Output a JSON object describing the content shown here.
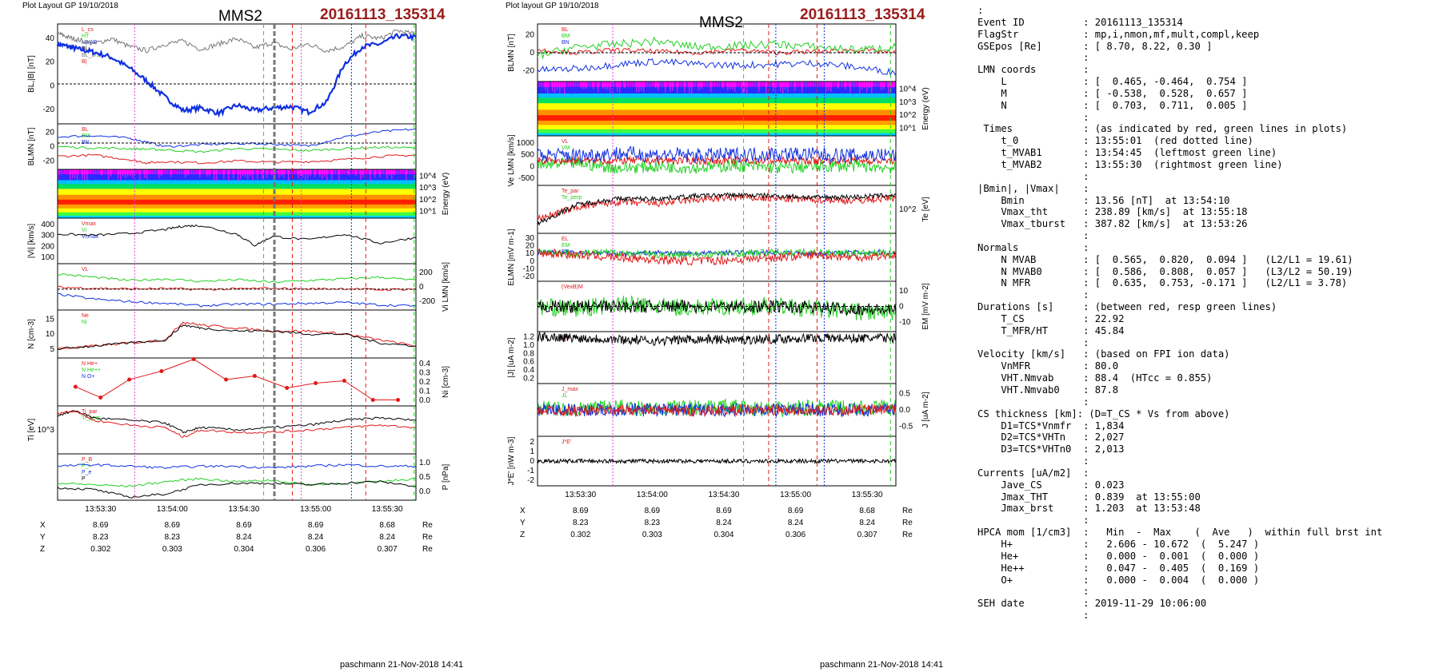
{
  "left_header": {
    "layout_label": "Plot Layout GP 19/10/2018",
    "spacecraft": "MMS2",
    "event": "20161113_135314"
  },
  "middle_header": {
    "layout_label": "Plot layout GP 19/10/2018",
    "spacecraft": "MMS2",
    "event": "20161113_135314"
  },
  "footer_left": "paschmann 21-Nov-2018 14:41",
  "footer_middle": "paschmann 21-Nov-2018 14:41",
  "colors": {
    "event_title": "#9b1b1b",
    "blue": "#1030e0",
    "red": "#e01a1a",
    "green": "#22d022",
    "gray": "#777777",
    "magenta": "#e040e0",
    "black": "#000000"
  },
  "chart_data": [
    {
      "type": "line",
      "panel": "left",
      "x_tick_labels": [
        "13:53:30",
        "13:54:00",
        "13:54:30",
        "13:55:00",
        "13:55:30"
      ],
      "position_table": {
        "rows": [
          {
            "label": "X",
            "values": [
              "8.69",
              "8.69",
              "8.69",
              "8.69",
              "8.68"
            ],
            "unit": "Re"
          },
          {
            "label": "Y",
            "values": [
              "8.23",
              "8.23",
              "8.24",
              "8.24",
              "8.24"
            ],
            "unit": "Re"
          },
          {
            "label": "Z",
            "values": [
              "0.302",
              "0.303",
              "0.304",
              "0.306",
              "0.307"
            ],
            "unit": "Re"
          }
        ]
      },
      "panels": [
        {
          "id": "bl",
          "ylabel": "BL,|B| [nT]",
          "ylim": [
            -30,
            45
          ],
          "ticks": [
            "40",
            "20",
            "0",
            "-20"
          ],
          "legend": [
            "L_cs",
            "HT",
            "MVAB",
            "BL",
            "BL_brst",
            "B|"
          ],
          "x": [
            0,
            0.03,
            0.06,
            0.1,
            0.15,
            0.2,
            0.25,
            0.3,
            0.35,
            0.4,
            0.45,
            0.5,
            0.55,
            0.6,
            0.65,
            0.7,
            0.75,
            0.8,
            0.85,
            0.9,
            0.95,
            1.0
          ],
          "series": [
            {
              "values": [
                30,
                28,
                26,
                24,
                20,
                12,
                2,
                -10,
                -20,
                -18,
                -22,
                -16,
                -20,
                -18,
                -17,
                -21,
                -14,
                15,
                28,
                30,
                36,
                35
              ]
            },
            {
              "values": [
                38,
                35,
                33,
                30,
                34,
                28,
                25,
                30,
                32,
                26,
                30,
                34,
                27,
                31,
                26,
                30,
                25,
                28,
                36,
                34,
                40,
                37
              ]
            }
          ]
        },
        {
          "id": "blmn",
          "ylabel": "BLMN [nT]",
          "ylim": [
            -30,
            40
          ],
          "ticks": [
            "20",
            "0",
            "-20"
          ],
          "legend": [
            "BL",
            "BM",
            "BN"
          ],
          "x": [
            0,
            0.1,
            0.2,
            0.25,
            0.3,
            0.4,
            0.5,
            0.6,
            0.7,
            0.8,
            0.9,
            1.0
          ],
          "series": [
            {
              "values": [
                20,
                22,
                18,
                12,
                5,
                8,
                10,
                9,
                6,
                20,
                28,
                32
              ]
            },
            {
              "values": [
                -10,
                -8,
                -15,
                -20,
                -18,
                -20,
                -17,
                -19,
                -18,
                -15,
                -10,
                -8
              ]
            },
            {
              "values": [
                5,
                3,
                2,
                1,
                0,
                -3,
                2,
                1,
                -1,
                2,
                4,
                3
              ]
            }
          ]
        },
        {
          "id": "espec",
          "ylabel": "Energy (eV)",
          "ticks": [
            "10^4",
            "10^3",
            "10^2",
            "10^1"
          ]
        },
        {
          "id": "vi",
          "ylabel": "|Vi| [km/s]",
          "ylim": [
            0,
            400
          ],
          "ticks": [
            "400",
            "300",
            "200",
            "100"
          ],
          "legend": [
            "Vmax",
            "Vi",
            "Vi,max"
          ],
          "x": [
            0,
            0.1,
            0.2,
            0.3,
            0.35,
            0.4,
            0.5,
            0.55,
            0.6,
            0.7,
            0.8,
            0.9,
            1.0
          ],
          "series": [
            {
              "values": [
                260,
                250,
                265,
                300,
                330,
                335,
                260,
                160,
                240,
                210,
                260,
                180,
                230
              ]
            }
          ]
        },
        {
          "id": "vilmn",
          "ylabel": "Vi LMN [km/s]",
          "ylim": [
            -250,
            300
          ],
          "ticks": [
            "200",
            "0",
            "-200"
          ],
          "legend": [
            "VL"
          ],
          "x": [
            0,
            0.1,
            0.2,
            0.3,
            0.4,
            0.5,
            0.6,
            0.7,
            0.8,
            0.9,
            1.0
          ],
          "series": [
            {
              "values": [
                180,
                140,
                100,
                120,
                90,
                110,
                80,
                100,
                120,
                140,
                100
              ]
            },
            {
              "values": [
                -60,
                -120,
                -150,
                -170,
                -200,
                -180,
                -180,
                -170,
                -160,
                -190,
                -200
              ]
            },
            {
              "values": [
                20,
                10,
                0,
                5,
                -5,
                0,
                10,
                0,
                5,
                -10,
                0
              ]
            }
          ]
        },
        {
          "id": "density",
          "ylabel": "N [cm-3]",
          "ylim": [
            0,
            16
          ],
          "ticks": [
            "15",
            "10",
            "5"
          ],
          "legend": [
            "Ne",
            "Ni"
          ],
          "x": [
            0,
            0.1,
            0.2,
            0.3,
            0.35,
            0.4,
            0.5,
            0.6,
            0.7,
            0.8,
            0.9,
            1.0
          ],
          "series": [
            {
              "values": [
                3,
                4,
                5,
                6,
                12,
                11,
                10,
                9,
                9,
                8,
                6,
                4
              ]
            },
            {
              "values": [
                3,
                4,
                5,
                6,
                11,
                10,
                9,
                9,
                8,
                8,
                5,
                4
              ]
            }
          ]
        },
        {
          "id": "hpca",
          "ylabel": "Ni [cm-3]",
          "ylim": [
            0,
            0.4
          ],
          "ticks": [
            "0.4",
            "0.3",
            "0.2",
            "0.1",
            "0.0"
          ],
          "legend": [
            "N He+",
            "N He++",
            "N O+"
          ],
          "x": [
            0.05,
            0.12,
            0.2,
            0.29,
            0.38,
            0.47,
            0.55,
            0.64,
            0.72,
            0.8,
            0.88,
            0.95
          ],
          "series": [
            {
              "values": [
                0.16,
                0.07,
                0.22,
                0.29,
                0.39,
                0.22,
                0.25,
                0.15,
                0.19,
                0.21,
                0.05,
                0.05
              ]
            }
          ]
        },
        {
          "id": "ti",
          "ylabel": "Ti [eV]",
          "ticks": [
            "10^3"
          ],
          "legend": [
            "Ti_par",
            "Ti_perp"
          ],
          "x": [
            0,
            0.05,
            0.1,
            0.2,
            0.3,
            0.35,
            0.4,
            0.5,
            0.6,
            0.7,
            0.8,
            0.9,
            1.0
          ],
          "series": [
            {
              "values": [
                0.8,
                0.9,
                0.75,
                0.7,
                0.65,
                0.45,
                0.55,
                0.5,
                0.55,
                0.6,
                0.7,
                0.75,
                0.7
              ]
            },
            {
              "values": [
                0.85,
                0.9,
                0.7,
                0.6,
                0.55,
                0.35,
                0.5,
                0.45,
                0.45,
                0.5,
                0.55,
                0.6,
                0.55
              ]
            }
          ]
        },
        {
          "id": "pressure",
          "ylabel": "P [nPa]",
          "ylim": [
            0,
            1.5
          ],
          "ticks": [
            "1.0",
            "0.5",
            "0.0"
          ],
          "legend": [
            "P_B",
            "P_i",
            "P_e",
            "P"
          ],
          "x": [
            0,
            0.1,
            0.2,
            0.3,
            0.4,
            0.5,
            0.6,
            0.7,
            0.8,
            0.9,
            1.0
          ],
          "series": [
            {
              "values": [
                1.1,
                1.15,
                1.1,
                1.05,
                1.1,
                1.1,
                1.05,
                1.1,
                1.15,
                1.1,
                1.1
              ]
            },
            {
              "values": [
                0.55,
                0.5,
                0.45,
                0.6,
                0.7,
                0.6,
                0.65,
                0.5,
                0.55,
                0.6,
                0.7
              ]
            },
            {
              "values": [
                0.4,
                0.35,
                0.1,
                0.2,
                0.5,
                0.55,
                0.55,
                0.5,
                0.55,
                0.6,
                0.45
              ]
            }
          ]
        }
      ]
    },
    {
      "type": "line",
      "panel": "middle",
      "x_tick_labels": [
        "13:53:30",
        "13:54:00",
        "13:54:30",
        "13:55:00",
        "13:55:30"
      ],
      "position_table": {
        "rows": [
          {
            "label": "X",
            "values": [
              "8.69",
              "8.69",
              "8.69",
              "8.69",
              "8.68"
            ],
            "unit": "Re"
          },
          {
            "label": "Y",
            "values": [
              "8.23",
              "8.23",
              "8.24",
              "8.24",
              "8.24"
            ],
            "unit": "Re"
          },
          {
            "label": "Z",
            "values": [
              "0.302",
              "0.303",
              "0.304",
              "0.306",
              "0.307"
            ],
            "unit": "Re"
          }
        ]
      },
      "panels": [
        {
          "id": "blmn",
          "ylabel": "BLMN [nT]",
          "ticks": [
            "20",
            "0",
            "-20"
          ],
          "legend": [
            "BL",
            "BM",
            "BN"
          ]
        },
        {
          "id": "espec",
          "ylabel": "Energy (eV)",
          "ticks": [
            "10^4",
            "10^3",
            "10^2",
            "10^1"
          ]
        },
        {
          "id": "ve",
          "ylabel": "Ve LMN [km/s]",
          "ticks": [
            "1000",
            "500",
            "0",
            "-500"
          ],
          "legend": [
            "VL",
            "VM",
            "VN"
          ]
        },
        {
          "id": "te",
          "ylabel": "Te [eV]",
          "ticks": [
            "10^2"
          ],
          "legend": [
            "Te_par",
            "Te_perp"
          ]
        },
        {
          "id": "e",
          "ylabel": "ELMN [mV m-1]",
          "ticks": [
            "30",
            "20",
            "10",
            "0",
            "-10",
            "-20"
          ],
          "legend": [
            "EL",
            "EM",
            "EN"
          ]
        },
        {
          "id": "em",
          "ylabel": "EM [mV m-2]",
          "ticks": [
            "10",
            "0",
            "-10"
          ],
          "legend": [
            "(VexB)M"
          ]
        },
        {
          "id": "j",
          "ylabel": "|J| [uA m-2]",
          "ticks": [
            "1.2",
            "1.0",
            "0.8",
            "0.6",
            "0.4",
            "0.2"
          ],
          "legend": [
            "|J|"
          ]
        },
        {
          "id": "jlmn",
          "ylabel": "J [uA m-2]",
          "ticks": [
            "0.5",
            "0.0",
            "-0.5"
          ],
          "legend": [
            "J_max",
            "JL"
          ]
        },
        {
          "id": "jdote",
          "ylabel": "J*E' [nW m-3]",
          "ticks": [
            "2",
            "1",
            "0",
            "-1",
            "-2"
          ],
          "legend": [
            "J*E'"
          ]
        }
      ]
    }
  ],
  "right_panel": {
    "lines": [
      ":",
      "Event ID          : 20161113_135314",
      "FlagStr           : mp,i,nmon,mf,mult,compl,keep",
      "GSEpos [Re]       : [ 8.70, 8.22, 0.30 ]",
      "                  :",
      "LMN coords        :",
      "    L             : [  0.465, -0.464,  0.754 ]",
      "    M             : [ -0.538,  0.528,  0.657 ]",
      "    N             : [  0.703,  0.711,  0.005 ]",
      "                  :",
      " Times            : (as indicated by red, green lines in plots)",
      "    t_0           : 13:55:01  (red dotted line)",
      "    t_MVAB1       : 13:54:45  (leftmost green line)",
      "    t_MVAB2       : 13:55:30  (rightmost green line)",
      "                  :",
      "|Bmin|, |Vmax|    :",
      "    Bmin          : 13.56 [nT]  at 13:54:10",
      "    Vmax_tht      : 238.89 [km/s]  at 13:55:18",
      "    Vmax_tburst   : 387.82 [km/s]  at 13:53:26",
      "                  :",
      "Normals           :",
      "    N MVAB        : [  0.565,  0.820,  0.094 ]   (L2/L1 = 19.61)",
      "    N MVAB0       : [  0.586,  0.808,  0.057 ]   (L3/L2 = 50.19)",
      "    N MFR         : [  0.635,  0.753, -0.171 ]   (L2/L1 = 3.78)",
      "                  :",
      "Durations [s]     : (between red, resp green lines)",
      "    T_CS          : 22.92",
      "    T_MFR/HT      : 45.84",
      "                  :",
      "Velocity [km/s]   : (based on FPI ion data)",
      "    VnMFR         : 80.0",
      "    VHT.Nmvab     : 88.4  (HTcc = 0.855)",
      "    VHT.Nmvab0    : 87.8",
      "                  :",
      "CS thickness [km]: (D=T_CS * Vs from above)",
      "    D1=TCS*Vnmfr  : 1,834",
      "    D2=TCS*VHTn   : 2,027",
      "    D3=TCS*VHTn0  : 2,013",
      "                  :",
      "Currents [uA/m2]  :",
      "    Jave_CS       : 0.023",
      "    Jmax_THT      : 0.839  at 13:55:00",
      "    Jmax_brst     : 1.203  at 13:53:48",
      "                  :",
      "HPCA mom [1/cm3]  :   Min  -  Max    (  Ave   )  within full brst int",
      "    H+            :   2.606 - 10.672  (  5.247 )",
      "    He+           :   0.000 -  0.001  (  0.000 )",
      "    He++          :   0.047 -  0.405  (  0.169 )",
      "    O+            :   0.000 -  0.004  (  0.000 )",
      "                  :",
      "SEH date          : 2019-11-29 10:06:00",
      "                  :"
    ]
  }
}
